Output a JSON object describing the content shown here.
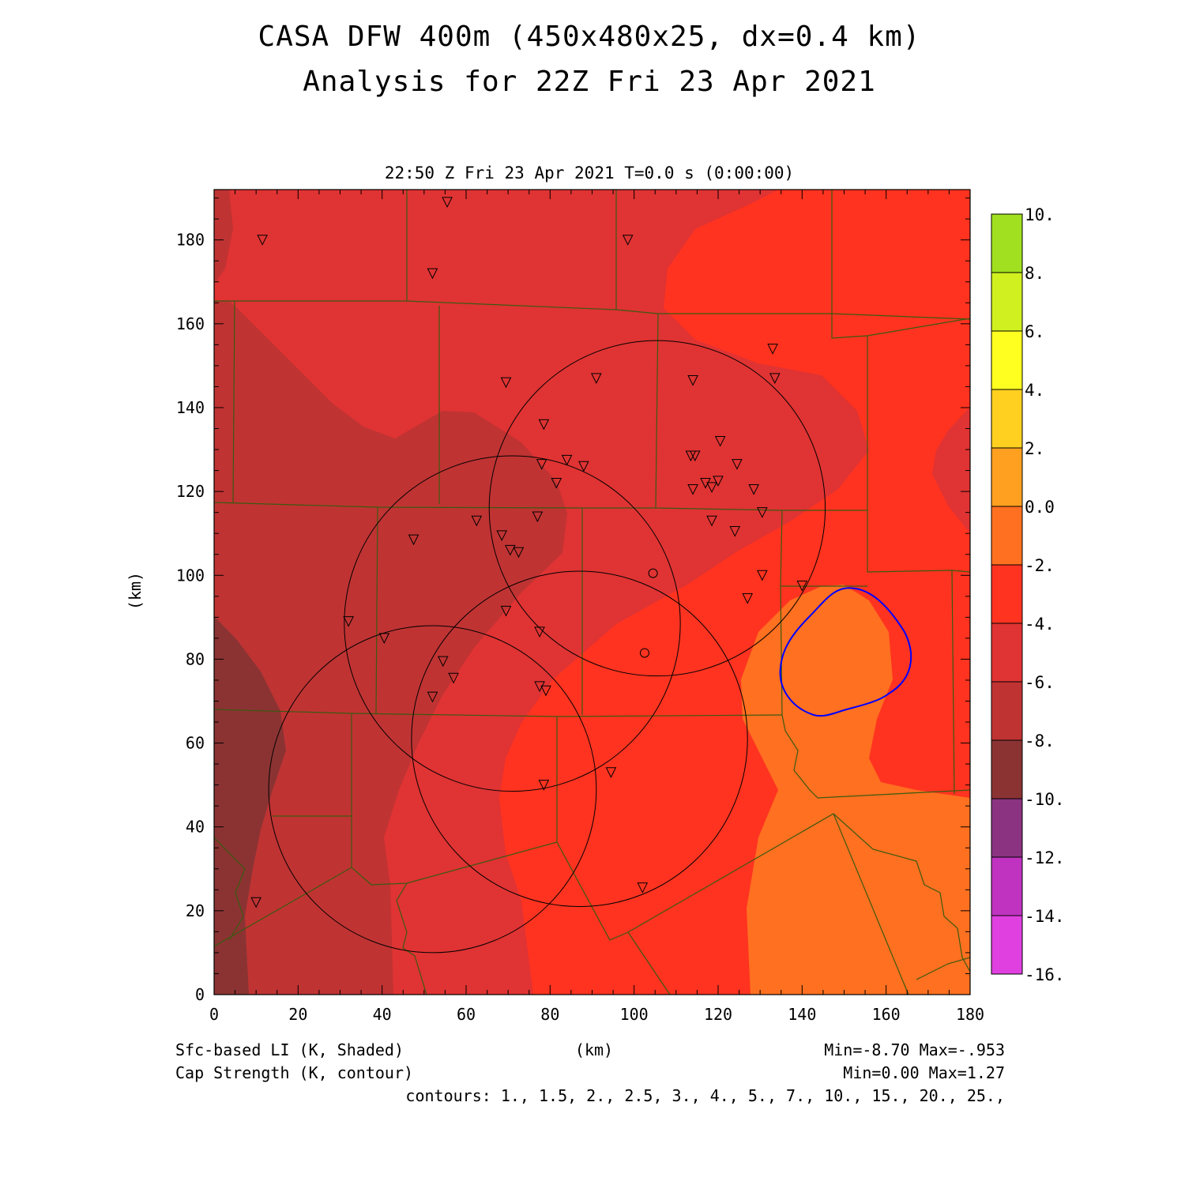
{
  "title_line1": "CASA DFW 400m (450x480x25, dx=0.4 km)",
  "title_line2": "Analysis for 22Z Fri 23 Apr 2021",
  "valid_time": "22:50 Z Fri 23 Apr 2021    T=0.0 s (0:00:00)",
  "x_axis_label": "(km)",
  "y_axis_label": "(km)",
  "footer": {
    "shaded_field": "Sfc-based LI (K, Shaded)",
    "contour_field": "Cap Strength (K, contour)",
    "shaded_minmax": "Min=-8.70 Max=-.953",
    "contour_minmax": "Min=0.00 Max=1.27",
    "contour_levels": "contours: 1., 1.5, 2., 2.5, 3., 4., 5., 7., 10., 15., 20., 25.,"
  },
  "colors": {
    "c_le10": "#8b3333",
    "c_8_6": "#c03333",
    "c_6_4": "#e03333",
    "c_4_2": "#ff3320",
    "c_2_0": "#ff7020",
    "contour": "#0000ff",
    "border": "#3a5a10"
  },
  "chart_data": {
    "type": "heatmap",
    "xlim": [
      0,
      180
    ],
    "ylim": [
      0,
      192
    ],
    "x_ticks": [
      0,
      20,
      40,
      60,
      80,
      100,
      120,
      140,
      160,
      180
    ],
    "y_ticks": [
      0,
      20,
      40,
      60,
      80,
      100,
      120,
      140,
      160,
      180
    ],
    "colorbar": {
      "labels": [
        "10.",
        "8.",
        "6.",
        "4.",
        "2.",
        "0.0",
        "-2.",
        "-4.",
        "-6.",
        "-8.",
        "-10.",
        "-12.",
        "-14.",
        "-16."
      ],
      "colors": [
        "#a0e020",
        "#d0f020",
        "#ffff20",
        "#ffd020",
        "#ffa020",
        "#ff7020",
        "#ff3320",
        "#e03333",
        "#c03333",
        "#8b3333",
        "#8b3380",
        "#c033c0",
        "#e040e0"
      ]
    },
    "radars": [
      {
        "cx": 52,
        "cy": 49,
        "r": 39
      },
      {
        "cx": 71,
        "cy": 88.5,
        "r": 40
      },
      {
        "cx": 87,
        "cy": 61,
        "r": 40
      },
      {
        "cx": 105.5,
        "cy": 116,
        "r": 40
      }
    ],
    "stations_circle": [
      [
        104.5,
        100.5
      ],
      [
        102.5,
        81.5
      ]
    ],
    "stations_triangle": [
      [
        55.5,
        189
      ],
      [
        11.5,
        180
      ],
      [
        98.5,
        180
      ],
      [
        52,
        172
      ],
      [
        133,
        154
      ],
      [
        91,
        147
      ],
      [
        133.5,
        147
      ],
      [
        69.5,
        146
      ],
      [
        114,
        146.5
      ],
      [
        78.5,
        136
      ],
      [
        120.5,
        132
      ],
      [
        113.5,
        128.5
      ],
      [
        114.5,
        128.5
      ],
      [
        84,
        127.5
      ],
      [
        78,
        126.5
      ],
      [
        88,
        126
      ],
      [
        124.5,
        126.5
      ],
      [
        81.5,
        122
      ],
      [
        117,
        122
      ],
      [
        118.5,
        121
      ],
      [
        120,
        122.5
      ],
      [
        128.5,
        120.5
      ],
      [
        114,
        120.5
      ],
      [
        130.5,
        115
      ],
      [
        62.5,
        113
      ],
      [
        77,
        114
      ],
      [
        118.5,
        113
      ],
      [
        124,
        110.5
      ],
      [
        68.5,
        109.5
      ],
      [
        47.5,
        108.5
      ],
      [
        70.5,
        106
      ],
      [
        72.5,
        105.5
      ],
      [
        130.5,
        100
      ],
      [
        140,
        97.5
      ],
      [
        127,
        94.5
      ],
      [
        69.5,
        91.5
      ],
      [
        32,
        89
      ],
      [
        77.5,
        86.5
      ],
      [
        40.5,
        85
      ],
      [
        54.5,
        79.5
      ],
      [
        57,
        75.5
      ],
      [
        77.5,
        73.5
      ],
      [
        79,
        72.5
      ],
      [
        52,
        71
      ],
      [
        94.5,
        53
      ],
      [
        78.5,
        50
      ],
      [
        10,
        22
      ],
      [
        102,
        25.5
      ]
    ]
  }
}
